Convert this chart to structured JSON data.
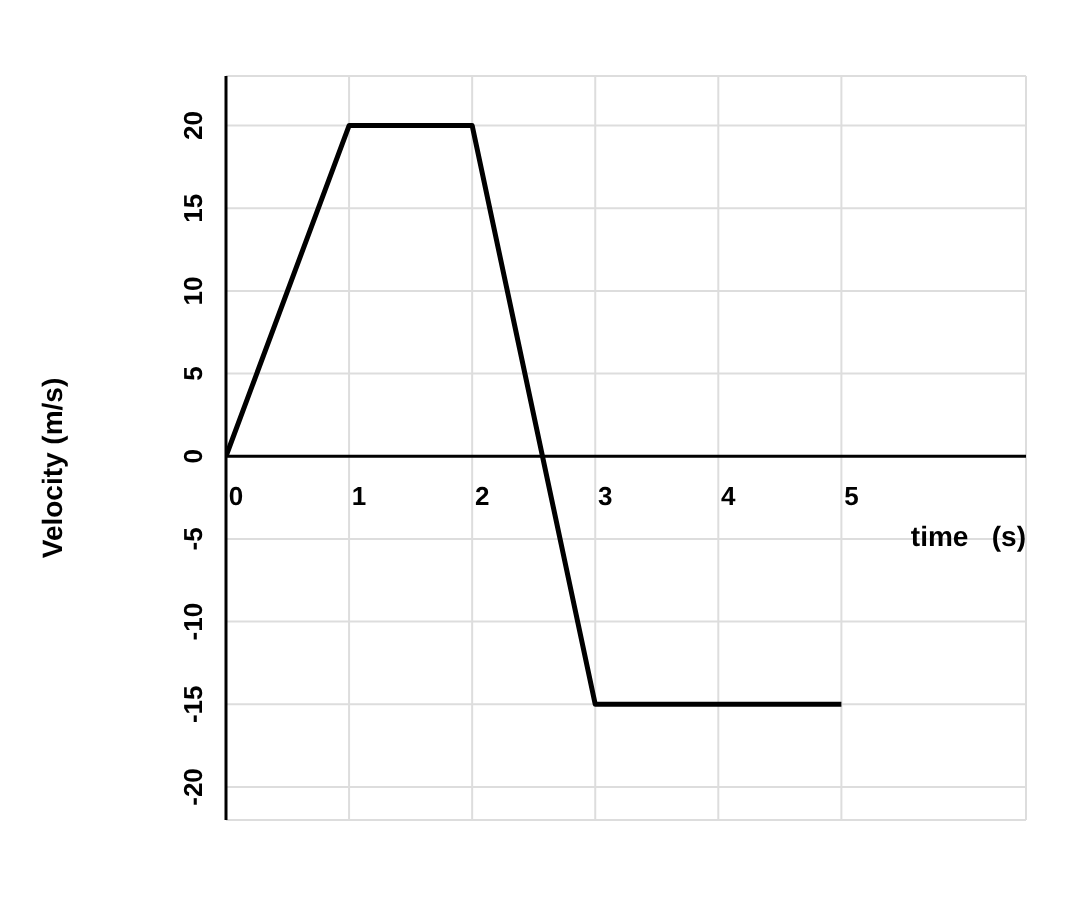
{
  "chart_data": {
    "type": "line",
    "xlabel": "time   (s)",
    "ylabel": "Velocity (m/s)",
    "x": [
      0,
      1,
      2,
      3,
      5
    ],
    "series": [
      {
        "color": "#000000",
        "values": [
          0,
          20,
          20,
          -15,
          -15
        ]
      }
    ],
    "xlim": [
      0,
      6.5
    ],
    "ylim": [
      -22,
      23
    ],
    "xticks": [
      0,
      1,
      2,
      3,
      4,
      5
    ],
    "yticks": [
      -20,
      -15,
      -10,
      -5,
      0,
      5,
      10,
      15,
      20
    ],
    "grid": true,
    "marker": "none",
    "line_style": "solid"
  }
}
